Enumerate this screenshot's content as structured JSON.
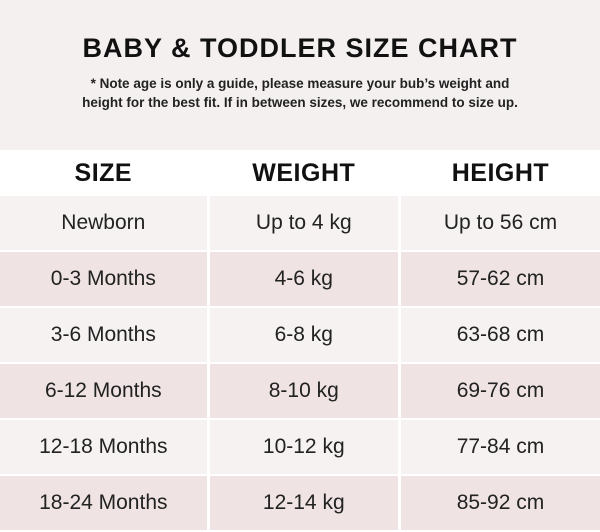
{
  "title": "BABY & TODDLER SIZE CHART",
  "note_line1": "* Note age is only a guide, please measure your bub’s weight and",
  "note_line2": "height for the best fit. If in between sizes, we recommend to size up.",
  "colors": {
    "header_band": "#f4f0ef",
    "row_light": "#f5f2f1",
    "row_pink": "#efe4e3"
  },
  "table": {
    "headers": [
      "SIZE",
      "WEIGHT",
      "HEIGHT"
    ],
    "rows": [
      [
        "Newborn",
        "Up to 4 kg",
        "Up to 56 cm"
      ],
      [
        "0-3 Months",
        "4-6 kg",
        "57-62 cm"
      ],
      [
        "3-6 Months",
        "6-8 kg",
        "63-68 cm"
      ],
      [
        "6-12 Months",
        "8-10 kg",
        "69-76 cm"
      ],
      [
        "12-18 Months",
        "10-12 kg",
        "77-84 cm"
      ],
      [
        "18-24 Months",
        "12-14 kg",
        "85-92 cm"
      ]
    ]
  }
}
